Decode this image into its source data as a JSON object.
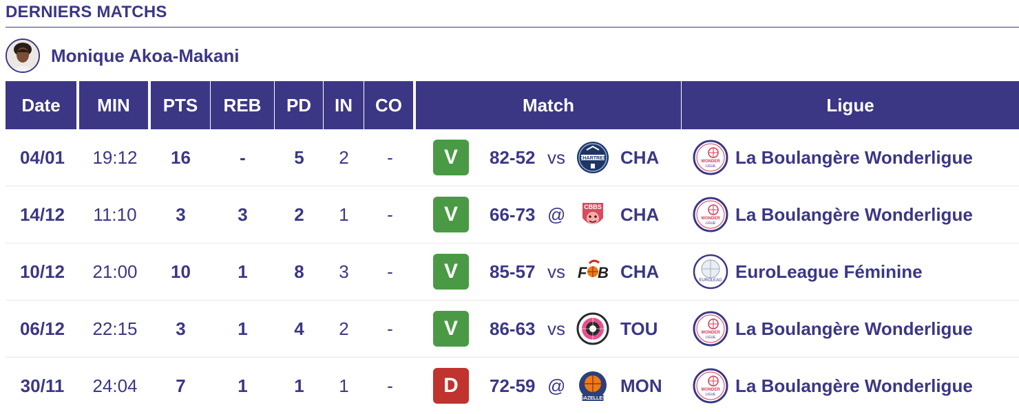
{
  "section": {
    "title": "DERNIERS MATCHS"
  },
  "player": {
    "name": "Monique Akoa-Makani"
  },
  "headers": [
    "Date",
    "MIN",
    "PTS",
    "REB",
    "PD",
    "IN",
    "CO",
    "Match",
    "Ligue"
  ],
  "colors": {
    "primary": "#3b3785",
    "win": "#4a9a45",
    "loss": "#c0332e"
  },
  "rows": [
    {
      "date": "04/01",
      "min": "19:12",
      "pts": "16",
      "reb": "-",
      "pd": "5",
      "in": "2",
      "co": "-",
      "result": "V",
      "score": "82-52",
      "loc": "vs",
      "team_logo": "chartres-logo",
      "team": "CHA",
      "league_logo": "lbwl-logo",
      "league": "La Boulangère Wonderligue"
    },
    {
      "date": "14/12",
      "min": "11:10",
      "pts": "3",
      "reb": "3",
      "pd": "2",
      "in": "1",
      "co": "-",
      "result": "V",
      "score": "66-73",
      "loc": "@",
      "team_logo": "cbbs-logo",
      "team": "CHA",
      "league_logo": "lbwl-logo",
      "league": "La Boulangère Wonderligue"
    },
    {
      "date": "10/12",
      "min": "21:00",
      "pts": "10",
      "reb": "1",
      "pd": "8",
      "in": "3",
      "co": "-",
      "result": "V",
      "score": "85-57",
      "loc": "vs",
      "team_logo": "fcb-logo",
      "team": "CHA",
      "league_logo": "euroleague-logo",
      "league": "EuroLeague Féminine"
    },
    {
      "date": "06/12",
      "min": "22:15",
      "pts": "3",
      "reb": "1",
      "pd": "4",
      "in": "2",
      "co": "-",
      "result": "V",
      "score": "86-63",
      "loc": "vs",
      "team_logo": "tou-logo",
      "team": "TOU",
      "league_logo": "lbwl-logo",
      "league": "La Boulangère Wonderligue"
    },
    {
      "date": "30/11",
      "min": "24:04",
      "pts": "7",
      "reb": "1",
      "pd": "1",
      "in": "1",
      "co": "-",
      "result": "D",
      "score": "72-59",
      "loc": "@",
      "team_logo": "gazelles-logo",
      "team": "MON",
      "league_logo": "lbwl-logo",
      "league": "La Boulangère Wonderligue"
    }
  ]
}
